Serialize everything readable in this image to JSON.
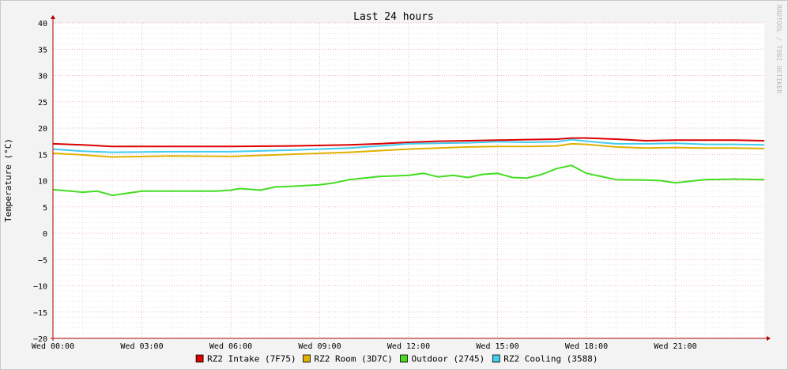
{
  "colors": {
    "background": "#f3f3f3",
    "plot_background": "#ffffff",
    "major_grid": "#e8a0a0",
    "minor_grid": "#d9d9d9",
    "axis": "#b00000",
    "text": "#000000"
  },
  "watermark": "RRDTOOL / TOBI OETIKER",
  "chart_data": {
    "type": "line",
    "title": "Last 24 hours",
    "ylabel": "Temperature (°C)",
    "xlabel": "",
    "ylim": [
      -20,
      40
    ],
    "xlim_hours": [
      0,
      24
    ],
    "y_ticks": [
      40,
      35,
      30,
      25,
      20,
      15,
      10,
      5,
      0,
      -5,
      -10,
      -15,
      -20
    ],
    "y_tick_labels": [
      "40",
      "35",
      "30",
      "25",
      "20",
      "15",
      "10",
      "5",
      "0",
      "−5",
      "−10",
      "−15",
      "−20"
    ],
    "x_ticks": [
      0,
      3,
      6,
      9,
      12,
      15,
      18,
      21
    ],
    "x_tick_labels": [
      "Wed 00:00",
      "Wed 03:00",
      "Wed 06:00",
      "Wed 09:00",
      "Wed 12:00",
      "Wed 15:00",
      "Wed 18:00",
      "Wed 21:00"
    ],
    "grid": true,
    "legend_position": "bottom",
    "series": [
      {
        "name": "RZ2 Intake (7F75)",
        "color": "#dd0000",
        "x": [
          0,
          1,
          2,
          4,
          6,
          8,
          10,
          11,
          12,
          13,
          14,
          15,
          16,
          17,
          17.5,
          18,
          19,
          20,
          21,
          22,
          23,
          24
        ],
        "y": [
          17.0,
          16.8,
          16.5,
          16.5,
          16.5,
          16.6,
          16.8,
          17.0,
          17.3,
          17.5,
          17.6,
          17.7,
          17.8,
          17.9,
          18.1,
          18.1,
          17.9,
          17.6,
          17.7,
          17.7,
          17.7,
          17.6
        ]
      },
      {
        "name": "RZ2 Room (3D7C)",
        "color": "#e0b000",
        "x": [
          0,
          1,
          2,
          4,
          6,
          8,
          10,
          11,
          12,
          13,
          14,
          15,
          16,
          17,
          17.5,
          18,
          19,
          20,
          21,
          22,
          23,
          24
        ],
        "y": [
          15.2,
          14.9,
          14.5,
          14.7,
          14.6,
          15.0,
          15.4,
          15.7,
          16.0,
          16.2,
          16.4,
          16.5,
          16.5,
          16.6,
          17.0,
          16.9,
          16.4,
          16.2,
          16.3,
          16.2,
          16.2,
          16.1
        ]
      },
      {
        "name": "Outdoor (2745)",
        "color": "#44dd22",
        "x": [
          0,
          1,
          1.5,
          2,
          3,
          4,
          5,
          5.5,
          6,
          6.3,
          7,
          7.5,
          8,
          9,
          9.5,
          10,
          11,
          12,
          12.5,
          13,
          13.5,
          14,
          14.5,
          15,
          15.5,
          16,
          16.5,
          17,
          17.5,
          18,
          19,
          20,
          20.5,
          21,
          22,
          23,
          24
        ],
        "y": [
          8.3,
          7.8,
          8.0,
          7.2,
          8.0,
          8.0,
          8.0,
          8.0,
          8.2,
          8.5,
          8.2,
          8.8,
          8.9,
          9.2,
          9.6,
          10.2,
          10.8,
          11.0,
          11.4,
          10.7,
          11.0,
          10.6,
          11.2,
          11.4,
          10.6,
          10.5,
          11.2,
          12.3,
          12.9,
          11.4,
          10.2,
          10.1,
          10.0,
          9.6,
          10.2,
          10.3,
          10.2
        ]
      },
      {
        "name": "RZ2 Cooling (3588)",
        "color": "#44ccee",
        "x": [
          0,
          1,
          2,
          4,
          6,
          8,
          10,
          11,
          12,
          13,
          14,
          15,
          16,
          17,
          17.5,
          18,
          19,
          20,
          21,
          22,
          23,
          24
        ],
        "y": [
          16.0,
          15.6,
          15.4,
          15.5,
          15.5,
          15.8,
          16.2,
          16.6,
          17.0,
          17.1,
          17.2,
          17.4,
          17.3,
          17.4,
          17.8,
          17.5,
          17.0,
          17.0,
          17.1,
          16.9,
          16.9,
          16.8
        ]
      }
    ]
  }
}
